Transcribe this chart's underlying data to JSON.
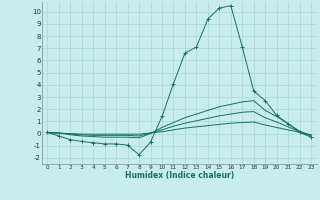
{
  "xlabel": "Humidex (Indice chaleur)",
  "xlim": [
    -0.5,
    23.5
  ],
  "ylim": [
    -2.5,
    10.8
  ],
  "yticks": [
    -2,
    -1,
    0,
    1,
    2,
    3,
    4,
    5,
    6,
    7,
    8,
    9,
    10
  ],
  "xticks": [
    0,
    1,
    2,
    3,
    4,
    5,
    6,
    7,
    8,
    9,
    10,
    11,
    12,
    13,
    14,
    15,
    16,
    17,
    18,
    19,
    20,
    21,
    22,
    23
  ],
  "bg_color": "#c8eeeb",
  "grid_color": "#a8d8d4",
  "line_color": "#1a6e65",
  "lines": [
    {
      "x": [
        0,
        1,
        2,
        3,
        4,
        5,
        6,
        7,
        8,
        9,
        10,
        11,
        12,
        13,
        14,
        15,
        16,
        17,
        18,
        19,
        20,
        21,
        22,
        23
      ],
      "y": [
        0.1,
        -0.2,
        -0.5,
        -0.65,
        -0.75,
        -0.85,
        -0.85,
        -0.95,
        -1.75,
        -0.7,
        1.4,
        4.1,
        6.6,
        7.1,
        9.4,
        10.3,
        10.5,
        7.1,
        3.5,
        2.7,
        1.5,
        0.8,
        0.1,
        -0.3
      ],
      "marker": "+"
    },
    {
      "x": [
        0,
        1,
        2,
        3,
        4,
        5,
        6,
        7,
        8,
        9,
        10,
        11,
        12,
        13,
        14,
        15,
        16,
        17,
        18,
        19,
        20,
        21,
        22,
        23
      ],
      "y": [
        0.1,
        0.05,
        -0.1,
        -0.2,
        -0.25,
        -0.3,
        -0.3,
        -0.3,
        -0.35,
        0.0,
        0.5,
        0.9,
        1.3,
        1.6,
        1.9,
        2.2,
        2.4,
        2.6,
        2.7,
        1.9,
        1.4,
        0.8,
        0.2,
        -0.2
      ],
      "marker": null
    },
    {
      "x": [
        0,
        1,
        2,
        3,
        4,
        5,
        6,
        7,
        8,
        9,
        10,
        11,
        12,
        13,
        14,
        15,
        16,
        17,
        18,
        19,
        20,
        21,
        22,
        23
      ],
      "y": [
        0.1,
        0.05,
        -0.05,
        -0.1,
        -0.15,
        -0.15,
        -0.15,
        -0.15,
        -0.2,
        0.05,
        0.3,
        0.6,
        0.85,
        1.05,
        1.25,
        1.45,
        1.6,
        1.75,
        1.8,
        1.3,
        0.95,
        0.55,
        0.15,
        -0.15
      ],
      "marker": null
    },
    {
      "x": [
        0,
        1,
        2,
        3,
        4,
        5,
        6,
        7,
        8,
        9,
        10,
        11,
        12,
        13,
        14,
        15,
        16,
        17,
        18,
        19,
        20,
        21,
        22,
        23
      ],
      "y": [
        0.05,
        0.02,
        0.0,
        -0.05,
        -0.05,
        -0.05,
        -0.05,
        -0.05,
        -0.05,
        0.05,
        0.15,
        0.3,
        0.45,
        0.55,
        0.65,
        0.75,
        0.85,
        0.9,
        0.95,
        0.7,
        0.5,
        0.3,
        0.1,
        -0.1
      ],
      "marker": null
    }
  ]
}
